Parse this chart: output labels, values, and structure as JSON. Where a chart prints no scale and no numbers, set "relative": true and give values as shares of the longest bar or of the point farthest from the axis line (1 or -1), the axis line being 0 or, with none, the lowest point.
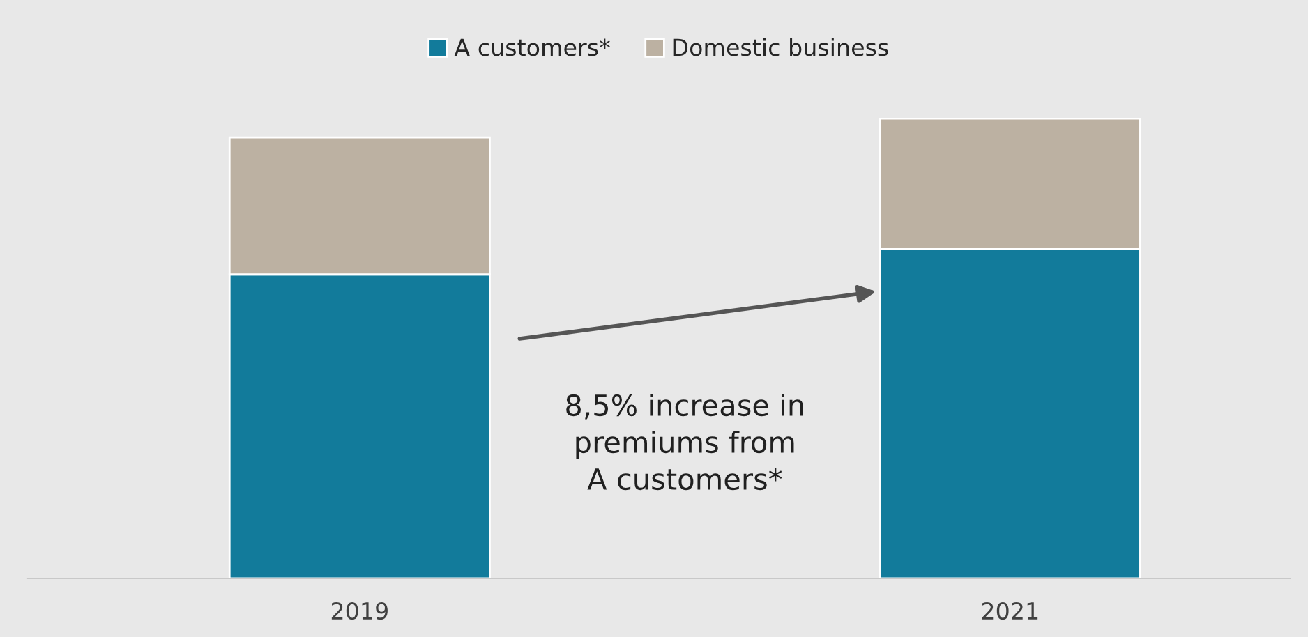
{
  "chart_data": {
    "type": "bar",
    "stacked": true,
    "relative": true,
    "categories": [
      "2019",
      "2021"
    ],
    "series": [
      {
        "name": "A customers*",
        "color": "#127b9b",
        "values": [
          0.661,
          0.716
        ]
      },
      {
        "name": "Domestic business",
        "color": "#bcb1a2",
        "values": [
          0.298,
          0.284
        ]
      }
    ],
    "legend": "top",
    "grid": false,
    "annotations": [
      "8,5% increase in\npremiums from\nA customers*"
    ]
  }
}
